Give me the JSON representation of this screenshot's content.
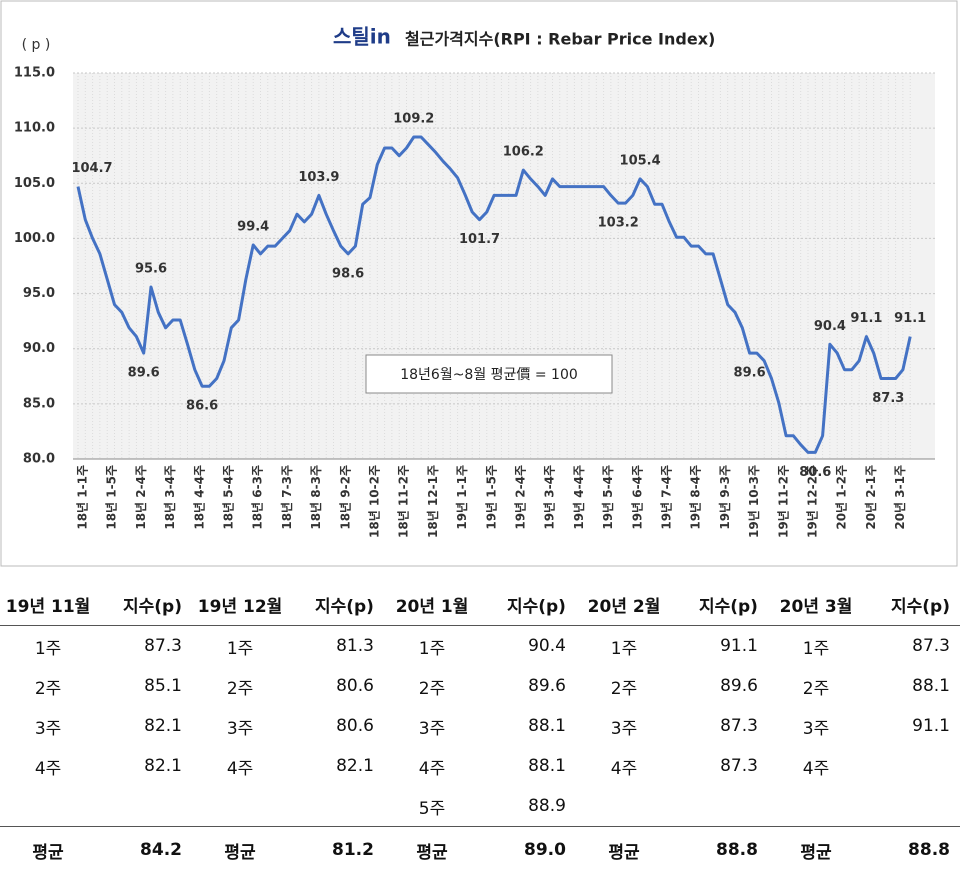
{
  "chart_data": {
    "type": "line",
    "brand": "스틸in",
    "title": "철근가격지수(RPI : Rebar Price Index)",
    "y_label": "( p )",
    "annotation": "18년6월~8월 평균價 = 100",
    "categories": [
      "18년 1-1주",
      null,
      null,
      null,
      "18년 1-5주",
      null,
      null,
      null,
      "18년 2-4주",
      null,
      null,
      null,
      "18년 3-4주",
      null,
      null,
      null,
      "18년 4-4주",
      null,
      null,
      null,
      "18년 5-4주",
      null,
      null,
      null,
      "18년 6-3주",
      null,
      null,
      null,
      "18년 7-3주",
      null,
      null,
      null,
      "18년 8-3주",
      null,
      null,
      null,
      "18년 9-2주",
      null,
      null,
      null,
      "18년 10-2주",
      null,
      null,
      null,
      "18년 11-2주",
      null,
      null,
      null,
      "18년 12-1주",
      null,
      null,
      null,
      "19년 1-1주",
      null,
      null,
      null,
      "19년 1-5주",
      null,
      null,
      null,
      "19년 2-4주",
      null,
      null,
      null,
      "19년 3-4주",
      null,
      null,
      null,
      "19년 4-4주",
      null,
      null,
      null,
      "19년 5-4주",
      null,
      null,
      null,
      "19년 6-4주",
      null,
      null,
      null,
      "19년 7-4주",
      null,
      null,
      null,
      "19년 8-4주",
      null,
      null,
      null,
      "19년 9-3주",
      null,
      null,
      null,
      "19년 10-3주",
      null,
      null,
      null,
      "19년 11-2주",
      null,
      null,
      null,
      "19년 12-2주",
      null,
      null,
      null,
      "20년 1-2주",
      null,
      null,
      null,
      "20년 2-1주",
      null,
      null,
      null,
      "20년 3-1주",
      null,
      null
    ],
    "series": [
      {
        "name": "RPI",
        "color": "#4472c4",
        "values": [
          104.7,
          101.7,
          100.0,
          98.6,
          96.3,
          94.0,
          93.3,
          91.9,
          91.1,
          89.6,
          95.6,
          93.3,
          91.9,
          92.6,
          92.6,
          90.4,
          88.1,
          86.6,
          86.6,
          87.3,
          88.9,
          91.9,
          92.6,
          96.3,
          99.4,
          98.6,
          99.3,
          99.3,
          100.0,
          100.7,
          102.2,
          101.5,
          102.2,
          103.9,
          102.2,
          100.7,
          99.3,
          98.6,
          99.3,
          103.1,
          103.7,
          106.7,
          108.2,
          108.2,
          107.5,
          108.2,
          109.2,
          109.2,
          108.5,
          107.8,
          107.0,
          106.3,
          105.5,
          104.0,
          102.4,
          101.7,
          102.4,
          103.9,
          103.9,
          103.9,
          103.9,
          106.2,
          105.4,
          104.7,
          103.9,
          105.4,
          104.7,
          104.7,
          104.7,
          104.7,
          104.7,
          104.7,
          104.7,
          103.9,
          103.2,
          103.2,
          103.9,
          105.4,
          104.7,
          103.1,
          103.1,
          101.5,
          100.1,
          100.1,
          99.3,
          99.3,
          98.6,
          98.6,
          96.3,
          94.0,
          93.3,
          91.9,
          89.6,
          89.6,
          88.9,
          87.3,
          85.1,
          82.1,
          82.1,
          81.3,
          80.6,
          80.6,
          82.1,
          90.4,
          89.6,
          88.1,
          88.1,
          88.9,
          91.1,
          89.6,
          87.3,
          87.3,
          87.3,
          88.1,
          91.1
        ],
        "value_labels": [
          "104.7",
          null,
          null,
          null,
          null,
          null,
          null,
          null,
          null,
          "89.6",
          "95.6",
          null,
          null,
          null,
          null,
          null,
          null,
          "86.6",
          null,
          null,
          null,
          null,
          null,
          null,
          "99.4",
          null,
          null,
          null,
          null,
          null,
          null,
          null,
          null,
          "103.9",
          null,
          null,
          null,
          "98.6",
          null,
          null,
          null,
          null,
          null,
          null,
          null,
          null,
          "109.2",
          null,
          null,
          null,
          null,
          null,
          null,
          null,
          null,
          "101.7",
          null,
          null,
          null,
          null,
          null,
          "106.2",
          null,
          null,
          null,
          null,
          null,
          null,
          null,
          null,
          null,
          null,
          null,
          null,
          "103.2",
          null,
          null,
          "105.4",
          null,
          null,
          null,
          null,
          null,
          null,
          null,
          null,
          null,
          null,
          null,
          null,
          null,
          null,
          "89.6",
          null,
          null,
          null,
          null,
          null,
          null,
          null,
          null,
          "80.6",
          null,
          "90.4",
          null,
          null,
          null,
          null,
          "91.1",
          null,
          null,
          "87.3",
          null,
          null,
          "91.1"
        ]
      }
    ],
    "ylim": [
      80,
      115
    ],
    "yticks": [
      {
        "value": 80,
        "label": "80.0"
      },
      {
        "value": 85,
        "label": "85.0"
      },
      {
        "value": 90,
        "label": "90.0"
      },
      {
        "value": 95,
        "label": "95.0"
      },
      {
        "value": 100,
        "label": "100.0"
      },
      {
        "value": 105,
        "label": "105.0"
      },
      {
        "value": 110,
        "label": "110.0"
      },
      {
        "value": 115,
        "label": "115.0"
      }
    ],
    "grid": true
  },
  "table": {
    "headers": [
      "19년 11월",
      "지수(p)",
      "19년 12월",
      "지수(p)",
      "20년 1월",
      "지수(p)",
      "20년 2월",
      "지수(p)",
      "20년 3월",
      "지수(p)"
    ],
    "rows": [
      [
        "1주",
        "87.3",
        "1주",
        "81.3",
        "1주",
        "90.4",
        "1주",
        "91.1",
        "1주",
        "87.3"
      ],
      [
        "2주",
        "85.1",
        "2주",
        "80.6",
        "2주",
        "89.6",
        "2주",
        "89.6",
        "2주",
        "88.1"
      ],
      [
        "3주",
        "82.1",
        "3주",
        "80.6",
        "3주",
        "88.1",
        "3주",
        "87.3",
        "3주",
        "91.1"
      ],
      [
        "4주",
        "82.1",
        "4주",
        "82.1",
        "4주",
        "88.1",
        "4주",
        "87.3",
        "4주",
        null
      ],
      [
        null,
        null,
        null,
        null,
        "5주",
        "88.9",
        null,
        null,
        null,
        null
      ]
    ],
    "footer": [
      "평균",
      "84.2",
      "평균",
      "81.2",
      "평균",
      "89.0",
      "평균",
      "88.8",
      "평균",
      "88.8"
    ]
  }
}
